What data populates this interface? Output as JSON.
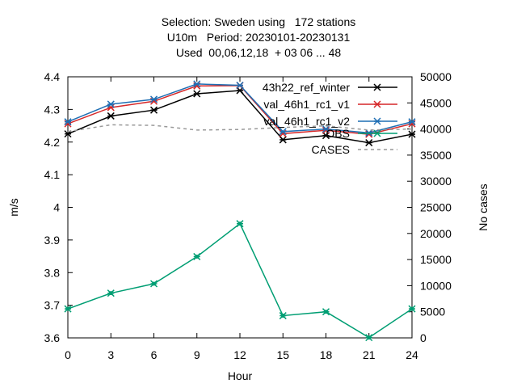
{
  "chart_data": {
    "type": "line",
    "title_lines": [
      "Selection: Sweden using   172 stations",
      "U10m   Period: 20230101-20230131",
      "Used  00,06,12,18  + 03 06 ... 48"
    ],
    "xlabel": "Hour",
    "ylabel": "m/s",
    "y2label": "No cases",
    "x": [
      0,
      3,
      6,
      9,
      12,
      15,
      18,
      21,
      24
    ],
    "xticks": [
      "0",
      "3",
      "6",
      "9",
      "12",
      "15",
      "18",
      "21",
      "24"
    ],
    "xlim": [
      0,
      24
    ],
    "ylim": [
      3.6,
      4.4
    ],
    "yticks": [
      "3.6",
      "3.7",
      "3.8",
      "3.9",
      "4",
      "4.1",
      "4.2",
      "4.3",
      "4.4"
    ],
    "y2lim": [
      0,
      50000
    ],
    "y2ticks": [
      "0",
      "5000",
      "10000",
      "15000",
      "20000",
      "25000",
      "30000",
      "35000",
      "40000",
      "45000",
      "50000"
    ],
    "grid": false,
    "legend_position": "top-right",
    "series": [
      {
        "name": "43h22_ref_winter",
        "axis": "y",
        "color": "#000000",
        "marker": "cross",
        "dash": "",
        "values": [
          4.225,
          4.28,
          4.298,
          4.348,
          4.358,
          4.207,
          4.22,
          4.198,
          4.224
        ]
      },
      {
        "name": "val_46h1_rc1_v1",
        "axis": "y",
        "color": "#d62728",
        "marker": "cross",
        "dash": "",
        "values": [
          4.256,
          4.306,
          4.325,
          4.372,
          4.373,
          4.226,
          4.236,
          4.224,
          4.256
        ]
      },
      {
        "name": "val_46h1_rc1_v2",
        "axis": "y",
        "color": "#1f6fb4",
        "marker": "cross",
        "dash": "",
        "values": [
          4.262,
          4.316,
          4.331,
          4.378,
          4.374,
          4.232,
          4.24,
          4.228,
          4.262
        ]
      },
      {
        "name": "OBS",
        "axis": "y",
        "color": "#009e73",
        "marker": "star",
        "dash": "",
        "values": [
          3.689,
          3.737,
          3.766,
          3.849,
          3.95,
          3.668,
          3.68,
          3.601,
          3.689
        ]
      },
      {
        "name": "CASES",
        "axis": "y2",
        "color": "#999999",
        "marker": "",
        "dash": "4,4",
        "values": [
          39500,
          40800,
          40700,
          39800,
          39900,
          40300,
          40600,
          39800,
          40000
        ]
      }
    ]
  }
}
